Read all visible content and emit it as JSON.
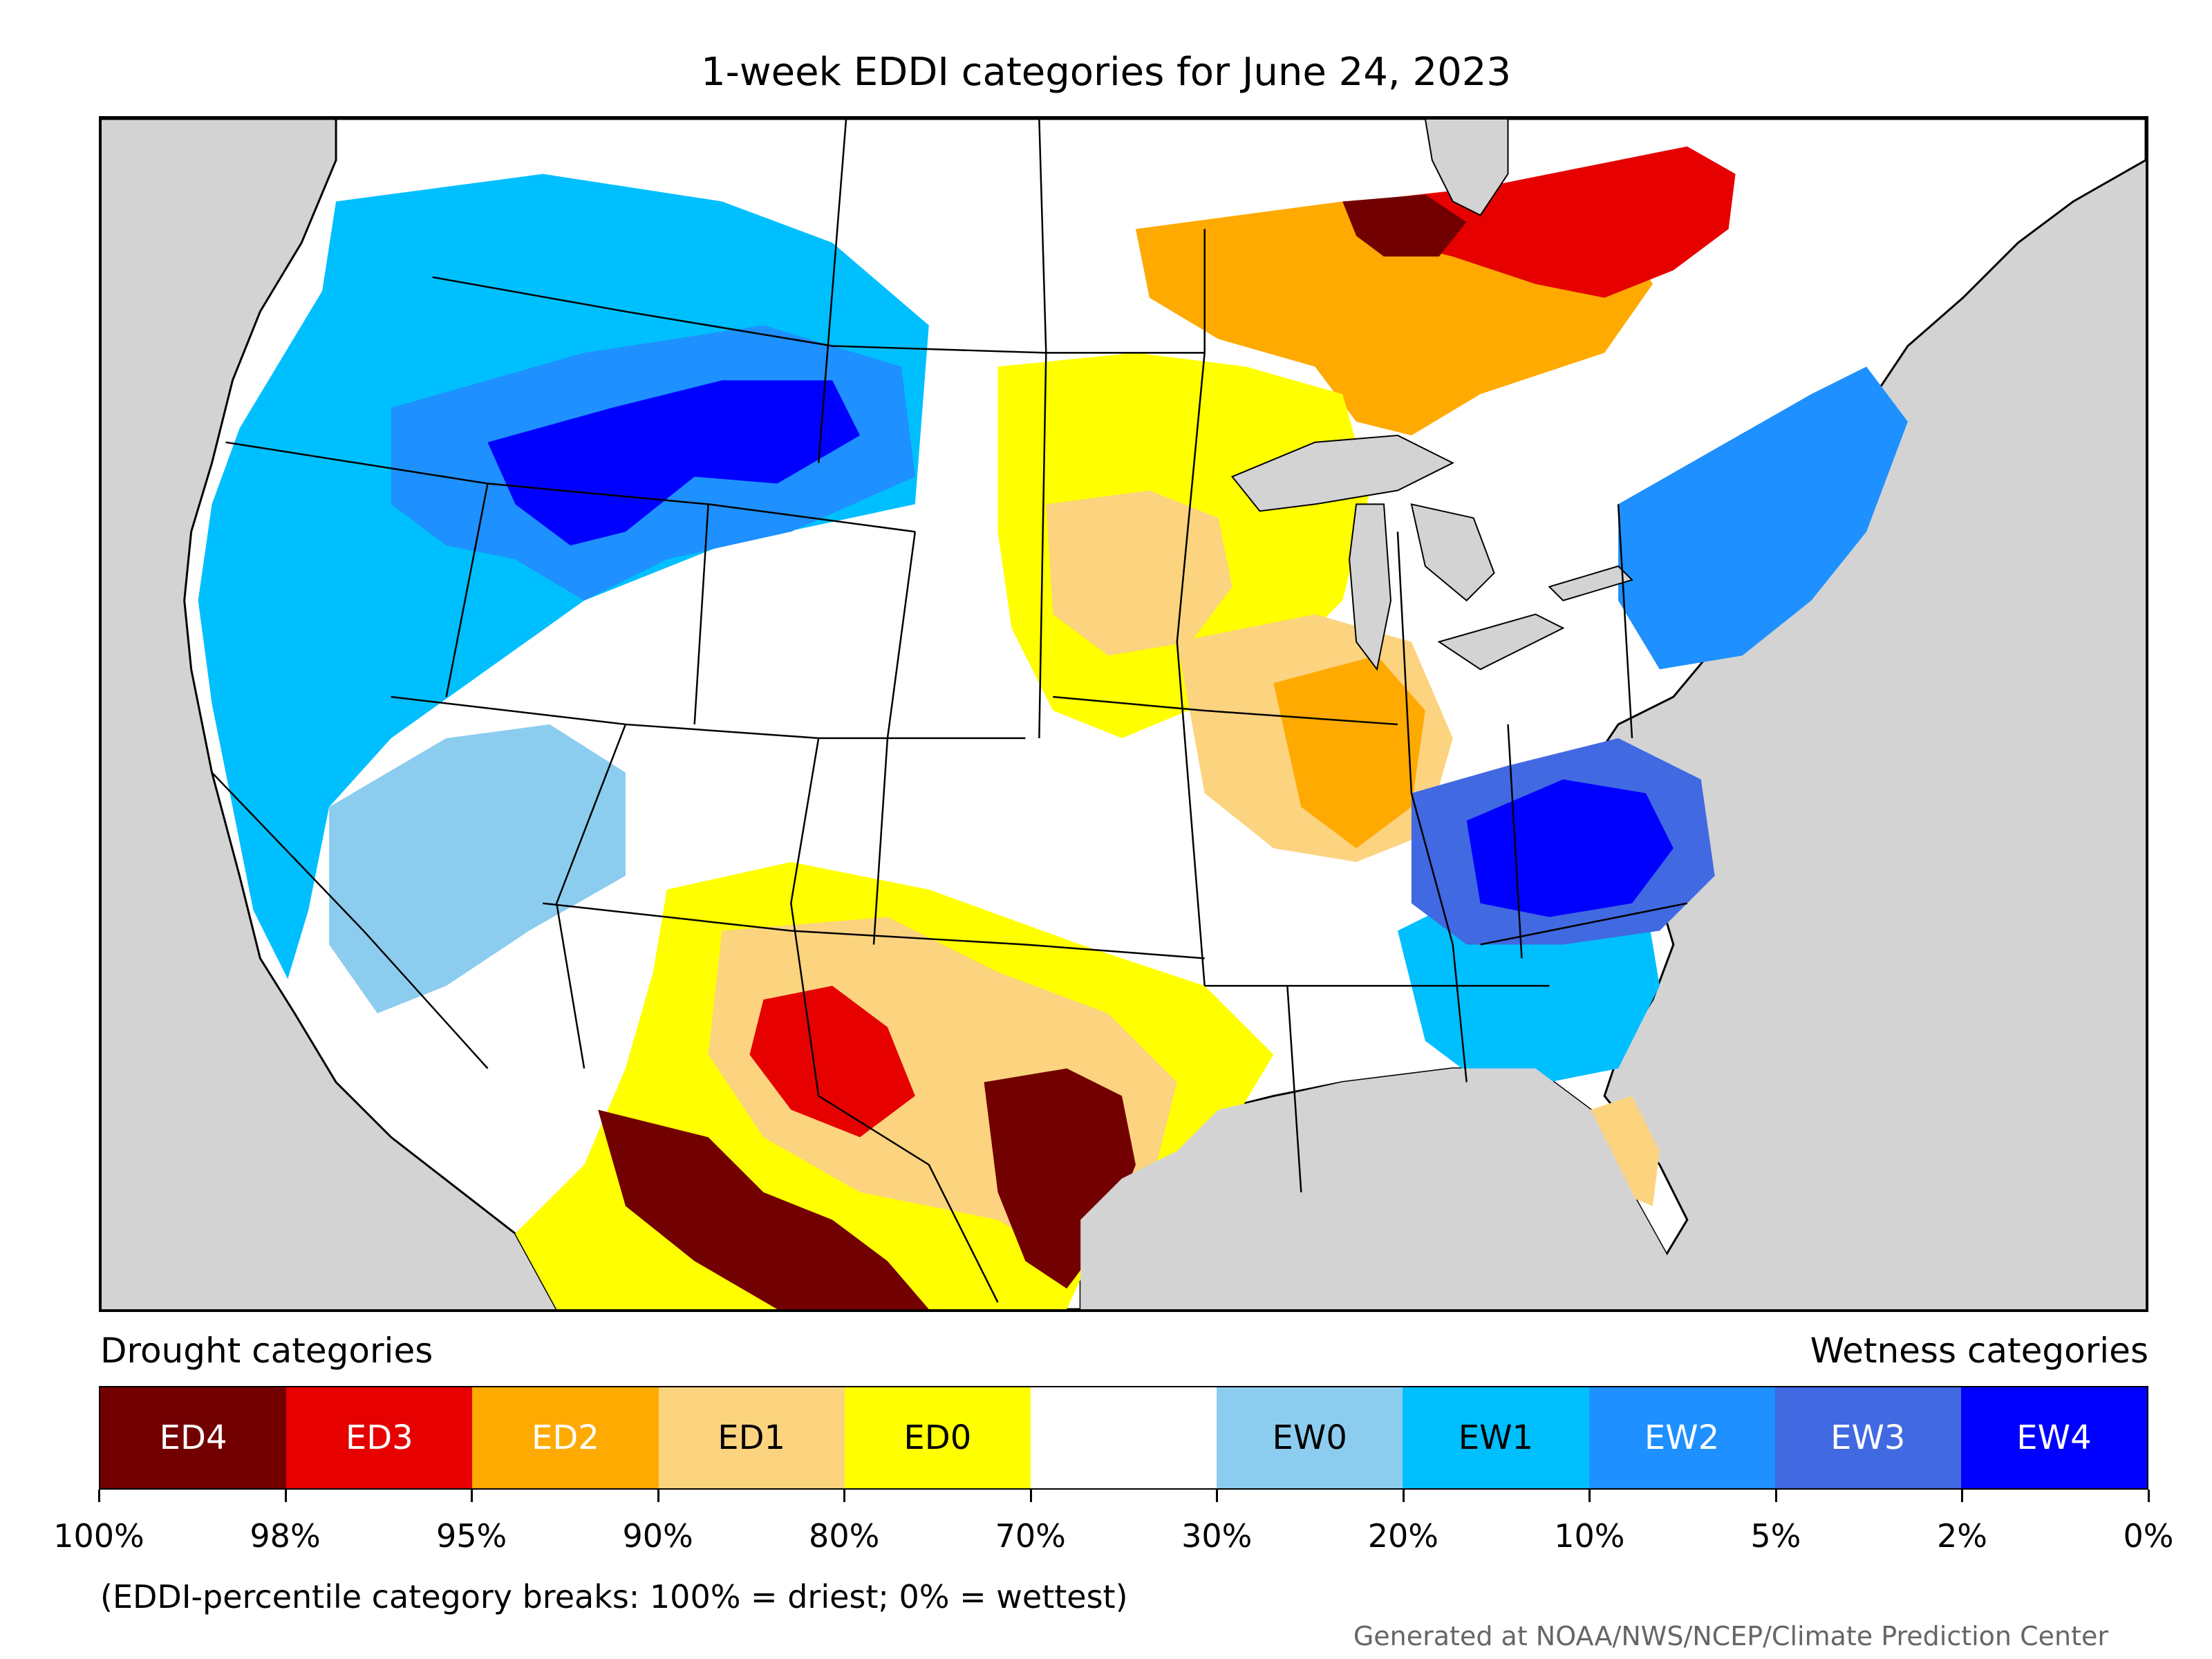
{
  "title": "1-week EDDI categories for June 24, 2023",
  "legend": {
    "drought_heading": "Drought categories",
    "wetness_heading": "Wetness categories",
    "categories": [
      {
        "label": "ED4",
        "color": "#730000",
        "text_color": "#ffffff"
      },
      {
        "label": "ED3",
        "color": "#e60000",
        "text_color": "#ffffff"
      },
      {
        "label": "ED2",
        "color": "#ffaa00",
        "text_color": "#ffffff"
      },
      {
        "label": "ED1",
        "color": "#fcd37f",
        "text_color": "#000000"
      },
      {
        "label": "ED0",
        "color": "#ffff00",
        "text_color": "#000000"
      },
      {
        "label": "",
        "color": "#ffffff",
        "text_color": "#000000"
      },
      {
        "label": "EW0",
        "color": "#8ccdef",
        "text_color": "#000000"
      },
      {
        "label": "EW1",
        "color": "#00bfff",
        "text_color": "#000000"
      },
      {
        "label": "EW2",
        "color": "#1e90ff",
        "text_color": "#ffffff"
      },
      {
        "label": "EW3",
        "color": "#4169e1",
        "text_color": "#ffffff"
      },
      {
        "label": "EW4",
        "color": "#0000ff",
        "text_color": "#ffffff"
      }
    ],
    "breaks": [
      "100%",
      "98%",
      "95%",
      "90%",
      "80%",
      "70%",
      "30%",
      "20%",
      "10%",
      "5%",
      "2%",
      "0%"
    ]
  },
  "note": "(EDDI-percentile category breaks: 100% = driest; 0% = wettest)",
  "credit": "Generated at NOAA/NWS/NCEP/Climate Prediction Center",
  "map_regions": [
    {
      "name": "pacific-northwest",
      "category": "EW2"
    },
    {
      "name": "idaho-montana",
      "category": "EW4"
    },
    {
      "name": "california-nevada",
      "category": "EW1"
    },
    {
      "name": "great-basin",
      "category": "EW0"
    },
    {
      "name": "ontario-canada",
      "category": "ED2"
    },
    {
      "name": "quebec",
      "category": "ED3"
    },
    {
      "name": "hudson-bay-coast",
      "category": "ED4"
    },
    {
      "name": "northern-plains",
      "category": "ED0"
    },
    {
      "name": "midwest",
      "category": "ED2"
    },
    {
      "name": "mid-atlantic",
      "category": "EW3"
    },
    {
      "name": "virginia-kentucky",
      "category": "EW4"
    },
    {
      "name": "new-england",
      "category": "EW2"
    },
    {
      "name": "southeast",
      "category": "EW1"
    },
    {
      "name": "texas",
      "category": "ED4"
    },
    {
      "name": "new-mexico",
      "category": "ED3"
    },
    {
      "name": "northern-mexico",
      "category": "ED4"
    },
    {
      "name": "florida",
      "category": "ED1"
    }
  ]
}
